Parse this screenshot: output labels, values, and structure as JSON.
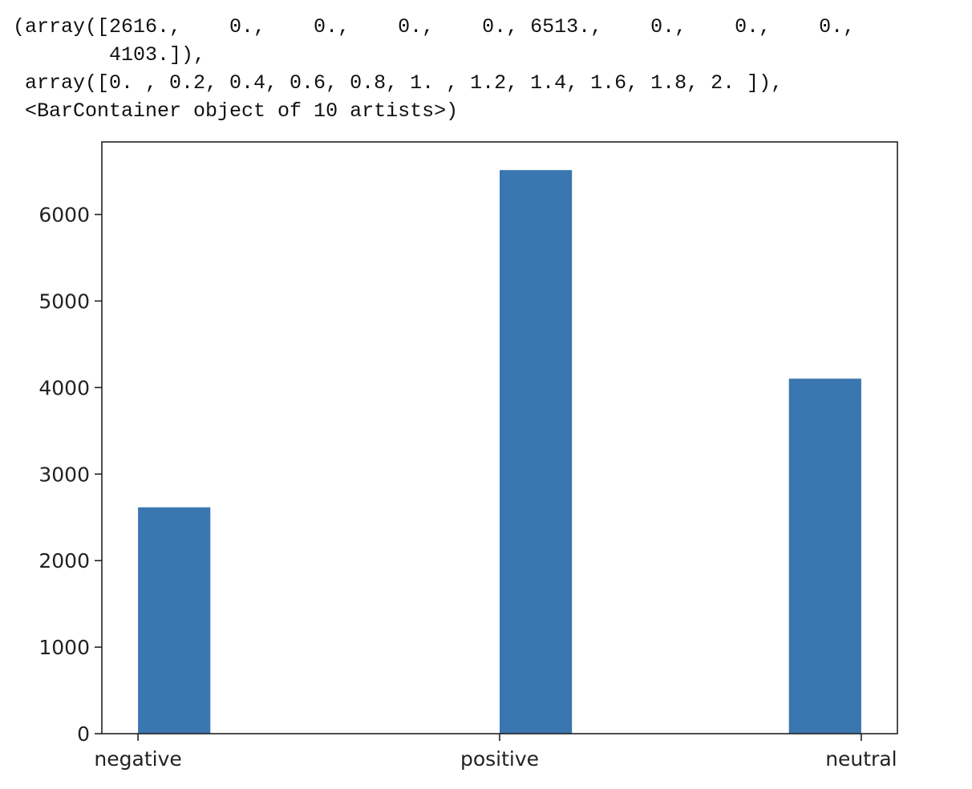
{
  "output": {
    "lines": [
      "(array([2616.,    0.,    0.,    0.,    0., 6513.,    0.,    0.,    0.,",
      "        4103.]),",
      " array([0. , 0.2, 0.4, 0.6, 0.8, 1. , 1.2, 1.4, 1.6, 1.8, 2. ]),",
      " <BarContainer object of 10 artists>)"
    ]
  },
  "chart_data": {
    "type": "bar",
    "categories": [
      "negative",
      "positive",
      "neutral"
    ],
    "bin_edges": [
      0,
      0.2,
      0.4,
      0.6,
      0.8,
      1.0,
      1.2,
      1.4,
      1.6,
      1.8,
      2.0
    ],
    "counts": [
      2616,
      0,
      0,
      0,
      0,
      6513,
      0,
      0,
      0,
      4103
    ],
    "category_positions": [
      0,
      1,
      2
    ],
    "xlim": [
      -0.1,
      2.1
    ],
    "ylim": [
      0,
      6838.65
    ],
    "yticks": [
      0,
      1000,
      2000,
      3000,
      4000,
      5000,
      6000
    ],
    "ytick_labels": [
      "0",
      "1000",
      "2000",
      "3000",
      "4000",
      "5000",
      "6000"
    ],
    "bar_color": "#3a76af",
    "grid": false,
    "title": "",
    "xlabel": "",
    "ylabel": ""
  }
}
